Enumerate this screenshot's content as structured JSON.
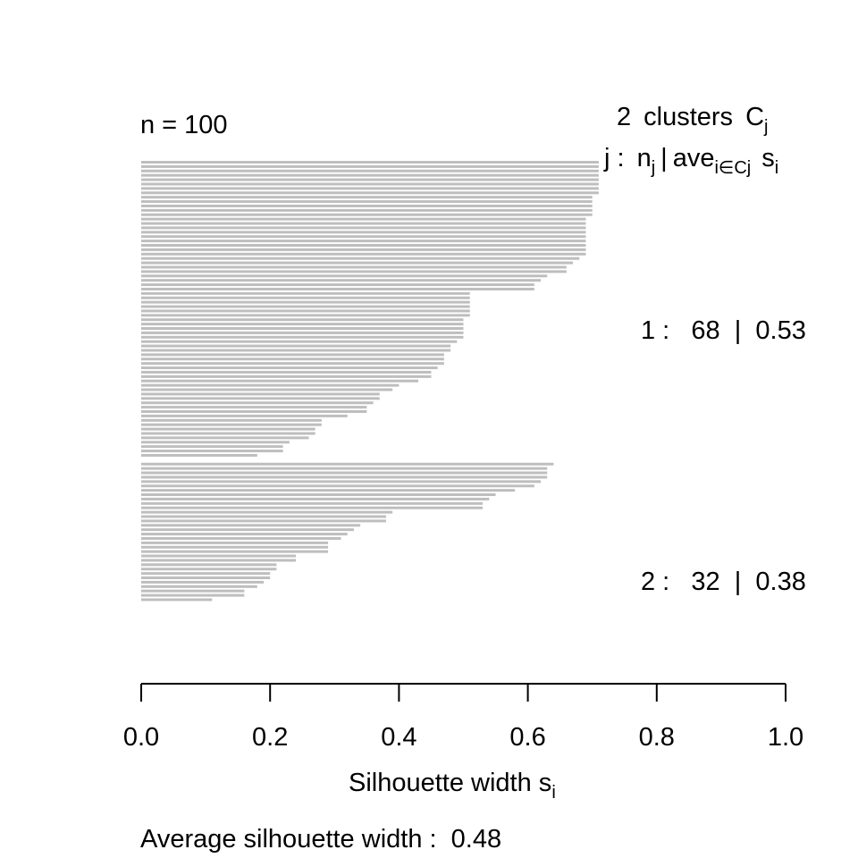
{
  "chart_data": {
    "type": "bar",
    "orientation": "horizontal",
    "title": "",
    "n_label": "n = 100",
    "legend": {
      "clusters_count": "2",
      "clusters_word": "clusters",
      "clusters_symbol": "C",
      "clusters_symbol_sub": "j",
      "header_j": "j :",
      "header_n": "n",
      "header_n_sub": "j",
      "header_sep": "|",
      "header_ave": "ave",
      "header_ave_sub": "i∈Cj",
      "header_s": "s",
      "header_s_sub": "i"
    },
    "xlabel": "Silhouette width s",
    "xlabel_sub": "i",
    "xlim": [
      0,
      1
    ],
    "xticks": [
      0,
      0.2,
      0.4,
      0.6,
      0.8,
      1
    ],
    "xtick_labels": [
      "0.0",
      "0.2",
      "0.4",
      "0.6",
      "0.8",
      "1.0"
    ],
    "bar_color": "#bebebe",
    "footer": "Average silhouette width :  0.48",
    "clusters": [
      {
        "id": 1,
        "size": 68,
        "avg_width": 0.53,
        "label": "1 :   68  |  0.53",
        "values": [
          0.71,
          0.71,
          0.71,
          0.71,
          0.71,
          0.71,
          0.71,
          0.71,
          0.7,
          0.7,
          0.7,
          0.7,
          0.7,
          0.69,
          0.69,
          0.69,
          0.69,
          0.69,
          0.69,
          0.69,
          0.69,
          0.69,
          0.68,
          0.67,
          0.66,
          0.66,
          0.63,
          0.62,
          0.61,
          0.61,
          0.51,
          0.51,
          0.51,
          0.51,
          0.51,
          0.51,
          0.5,
          0.5,
          0.5,
          0.5,
          0.5,
          0.49,
          0.48,
          0.48,
          0.47,
          0.47,
          0.47,
          0.46,
          0.45,
          0.45,
          0.43,
          0.4,
          0.39,
          0.37,
          0.37,
          0.36,
          0.35,
          0.35,
          0.32,
          0.28,
          0.28,
          0.27,
          0.27,
          0.26,
          0.23,
          0.22,
          0.22,
          0.18
        ]
      },
      {
        "id": 2,
        "size": 32,
        "avg_width": 0.38,
        "label": "2 :   32  |  0.38",
        "values": [
          0.64,
          0.63,
          0.63,
          0.63,
          0.62,
          0.61,
          0.58,
          0.55,
          0.54,
          0.53,
          0.53,
          0.39,
          0.38,
          0.38,
          0.34,
          0.33,
          0.32,
          0.31,
          0.29,
          0.29,
          0.29,
          0.24,
          0.24,
          0.21,
          0.21,
          0.2,
          0.2,
          0.19,
          0.18,
          0.16,
          0.16,
          0.11
        ]
      }
    ]
  }
}
